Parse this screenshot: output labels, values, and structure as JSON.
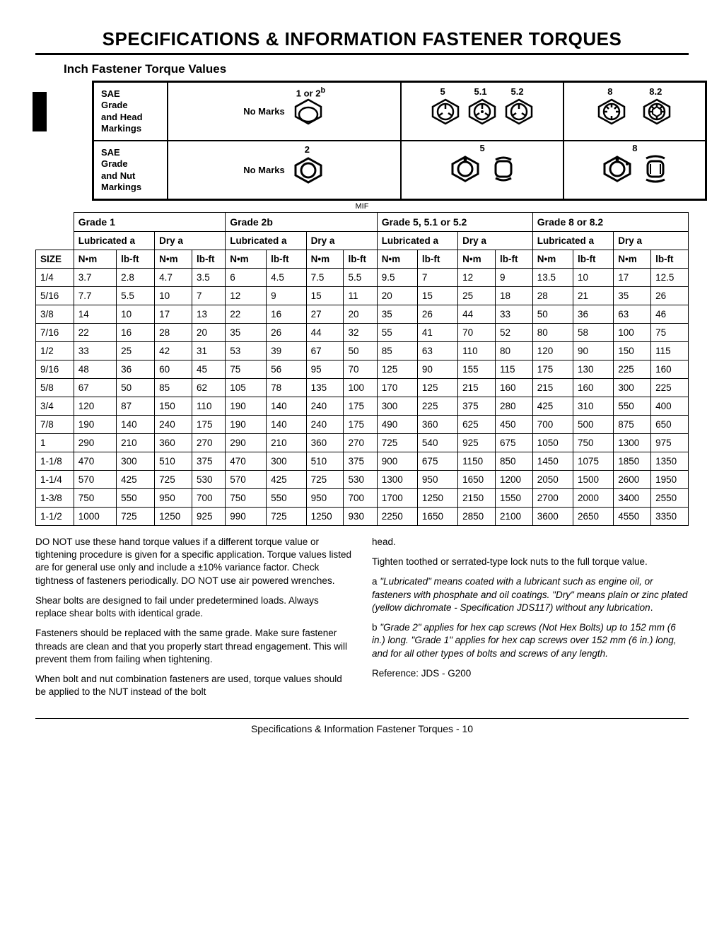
{
  "page_title": "SPECIFICATIONS & INFORMATION   FASTENER TORQUES",
  "section_title": "Inch Fastener Torque Values",
  "mif_label": "MIF",
  "markings": {
    "head_label": "SAE Grade and Head Markings",
    "nut_label": "SAE Grade and Nut Markings",
    "head_cells": {
      "c1_text": "No Marks",
      "c1_label": "1 or 2",
      "c1_sup": "b",
      "c2_labels": [
        "5",
        "5.1",
        "5.2"
      ],
      "c3_labels": [
        "8",
        "8.2"
      ]
    },
    "nut_cells": {
      "c1_text": "No Marks",
      "c1_label": "2",
      "c2_label": "5",
      "c3_label": "8"
    }
  },
  "grades": [
    "Grade 1",
    "Grade 2b",
    "Grade 5, 5.1 or 5.2",
    "Grade 8 or 8.2"
  ],
  "conditions": [
    "Lubricated a",
    "Dry a"
  ],
  "units": [
    "N•m",
    "lb-ft"
  ],
  "size_header": "SIZE",
  "rows": [
    {
      "size": "1/4",
      "v": [
        "3.7",
        "2.8",
        "4.7",
        "3.5",
        "6",
        "4.5",
        "7.5",
        "5.5",
        "9.5",
        "7",
        "12",
        "9",
        "13.5",
        "10",
        "17",
        "12.5"
      ]
    },
    {
      "size": "5/16",
      "v": [
        "7.7",
        "5.5",
        "10",
        "7",
        "12",
        "9",
        "15",
        "11",
        "20",
        "15",
        "25",
        "18",
        "28",
        "21",
        "35",
        "26"
      ]
    },
    {
      "size": "3/8",
      "v": [
        "14",
        "10",
        "17",
        "13",
        "22",
        "16",
        "27",
        "20",
        "35",
        "26",
        "44",
        "33",
        "50",
        "36",
        "63",
        "46"
      ]
    },
    {
      "size": "7/16",
      "v": [
        "22",
        "16",
        "28",
        "20",
        "35",
        "26",
        "44",
        "32",
        "55",
        "41",
        "70",
        "52",
        "80",
        "58",
        "100",
        "75"
      ]
    },
    {
      "size": "1/2",
      "v": [
        "33",
        "25",
        "42",
        "31",
        "53",
        "39",
        "67",
        "50",
        "85",
        "63",
        "110",
        "80",
        "120",
        "90",
        "150",
        "115"
      ]
    },
    {
      "size": "9/16",
      "v": [
        "48",
        "36",
        "60",
        "45",
        "75",
        "56",
        "95",
        "70",
        "125",
        "90",
        "155",
        "115",
        "175",
        "130",
        "225",
        "160"
      ]
    },
    {
      "size": "5/8",
      "v": [
        "67",
        "50",
        "85",
        "62",
        "105",
        "78",
        "135",
        "100",
        "170",
        "125",
        "215",
        "160",
        "215",
        "160",
        "300",
        "225"
      ]
    },
    {
      "size": "3/4",
      "v": [
        "120",
        "87",
        "150",
        "110",
        "190",
        "140",
        "240",
        "175",
        "300",
        "225",
        "375",
        "280",
        "425",
        "310",
        "550",
        "400"
      ]
    },
    {
      "size": "7/8",
      "v": [
        "190",
        "140",
        "240",
        "175",
        "190",
        "140",
        "240",
        "175",
        "490",
        "360",
        "625",
        "450",
        "700",
        "500",
        "875",
        "650"
      ]
    },
    {
      "size": "1",
      "v": [
        "290",
        "210",
        "360",
        "270",
        "290",
        "210",
        "360",
        "270",
        "725",
        "540",
        "925",
        "675",
        "1050",
        "750",
        "1300",
        "975"
      ]
    },
    {
      "size": "1-1/8",
      "v": [
        "470",
        "300",
        "510",
        "375",
        "470",
        "300",
        "510",
        "375",
        "900",
        "675",
        "1150",
        "850",
        "1450",
        "1075",
        "1850",
        "1350"
      ]
    },
    {
      "size": "1-1/4",
      "v": [
        "570",
        "425",
        "725",
        "530",
        "570",
        "425",
        "725",
        "530",
        "1300",
        "950",
        "1650",
        "1200",
        "2050",
        "1500",
        "2600",
        "1950"
      ]
    },
    {
      "size": "1-3/8",
      "v": [
        "750",
        "550",
        "950",
        "700",
        "750",
        "550",
        "950",
        "700",
        "1700",
        "1250",
        "2150",
        "1550",
        "2700",
        "2000",
        "3400",
        "2550"
      ]
    },
    {
      "size": "1-1/2",
      "v": [
        "1000",
        "725",
        "1250",
        "925",
        "990",
        "725",
        "1250",
        "930",
        "2250",
        "1650",
        "2850",
        "2100",
        "3600",
        "2650",
        "4550",
        "3350"
      ]
    }
  ],
  "body": {
    "p1": "DO NOT use these hand torque values if a different torque value or tightening procedure is given for a specific application. Torque values listed are for general use only and include a ±10% variance factor. Check tightness of fasteners periodically. DO NOT use air powered wrenches.",
    "p2": "Shear bolts are designed to fail under predetermined loads. Always replace shear bolts with identical grade.",
    "p3": "Fasteners should be replaced with the same grade. Make sure fastener threads are clean and that you properly start thread engagement. This will prevent them from failing when tightening.",
    "p4": "When bolt and nut combination fasteners are used, torque values should be applied to the NUT instead of the bolt",
    "p5": "head.",
    "p6": "Tighten toothed or serrated-type lock nuts to the full torque value.",
    "p7a": "a ",
    "p7b": "\"Lubricated\" means coated with a lubricant such as engine oil, or fasteners with phosphate and oil coatings. \"Dry\" means plain or zinc plated (yellow dichromate - Specification JDS117) without any lubrication",
    "p7c": ".",
    "p8a": "b ",
    "p8b": "\"Grade 2\" applies for hex cap screws (Not Hex Bolts) up to 152 mm (6 in.) long. \"Grade 1\" applies for hex cap screws over 152 mm (6 in.) long, and for all other types of bolts and screws of any length.",
    "p9": "Reference: JDS - G200"
  },
  "footer": "Specifications & Information   Fastener Torques  - 10"
}
